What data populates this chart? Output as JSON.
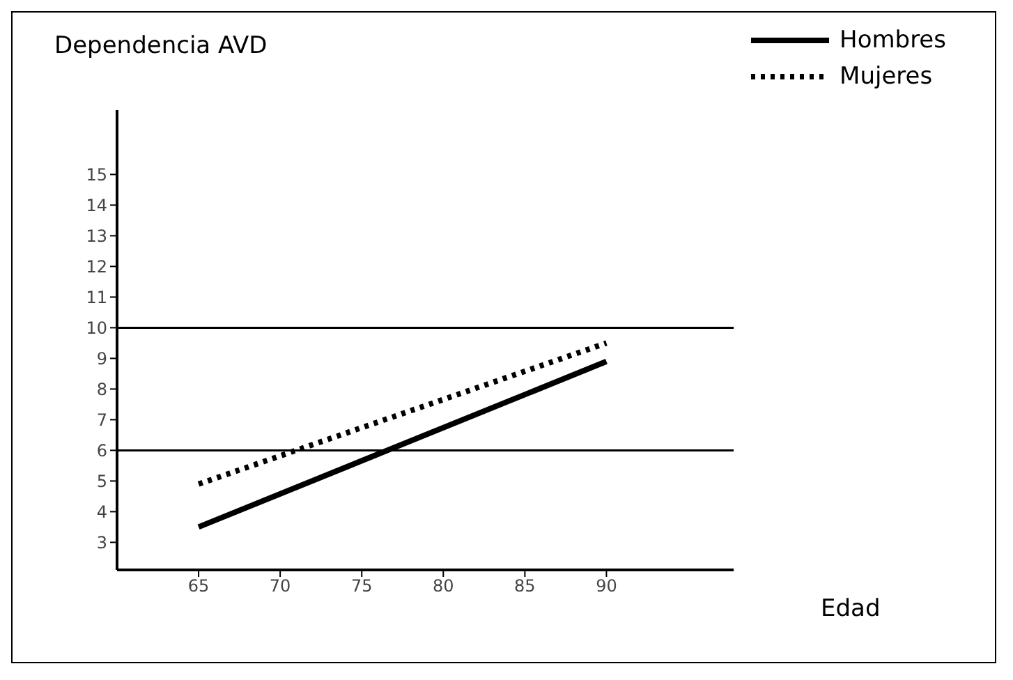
{
  "chart_data": {
    "type": "line",
    "ylabel": "Dependencia AVD",
    "xlabel": "Edad",
    "x": [
      65,
      90
    ],
    "series": [
      {
        "name": "Hombres",
        "color": "#000000",
        "values": [
          3.5,
          8.9
        ],
        "line_style": "solid"
      },
      {
        "name": "Mujeres",
        "color": "#000000",
        "values": [
          4.9,
          9.5
        ],
        "line_style": "dotted"
      }
    ],
    "xlim": [
      60,
      97.8
    ],
    "xticks": [
      65,
      70,
      75,
      80,
      85,
      90
    ],
    "ylim": [
      2.1,
      17.1
    ],
    "yticks": [
      3,
      4,
      5,
      6,
      7,
      8,
      9,
      10,
      11,
      12,
      13,
      14,
      15
    ],
    "ref_lines": [
      {
        "axis": "y",
        "value": 10
      },
      {
        "axis": "y",
        "value": 6
      }
    ],
    "legend": "top right",
    "marker": "none"
  }
}
